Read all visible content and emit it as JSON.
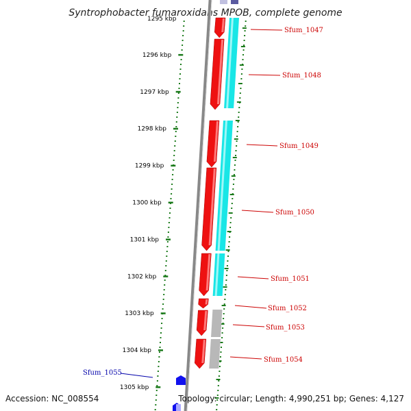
{
  "header": {
    "title": "Syntrophobacter fumaroxidans MPOB, complete genome"
  },
  "footer": {
    "accession": "Accession: NC_008554",
    "topology": "Topology: circular; Length: 4,990,251 bp; Genes: 4,127"
  },
  "scale": {
    "top_partial_label": "1295 kbp",
    "ticks": [
      {
        "kbp": 1296,
        "label": "1296 kbp"
      },
      {
        "kbp": 1297,
        "label": "1297 kbp"
      },
      {
        "kbp": 1298,
        "label": "1298 kbp"
      },
      {
        "kbp": 1299,
        "label": "1299 kbp"
      },
      {
        "kbp": 1300,
        "label": "1300 kbp"
      },
      {
        "kbp": 1301,
        "label": "1301 kbp"
      },
      {
        "kbp": 1302,
        "label": "1302 kbp"
      },
      {
        "kbp": 1303,
        "label": "1303 kbp"
      },
      {
        "kbp": 1304,
        "label": "1304 kbp"
      },
      {
        "kbp": 1305,
        "label": "1305 kbp"
      }
    ]
  },
  "genes": [
    {
      "id": "Sfum_1047",
      "strand": "forward"
    },
    {
      "id": "Sfum_1048",
      "strand": "forward"
    },
    {
      "id": "Sfum_1049",
      "strand": "forward"
    },
    {
      "id": "Sfum_1050",
      "strand": "forward"
    },
    {
      "id": "Sfum_1051",
      "strand": "forward"
    },
    {
      "id": "Sfum_1052",
      "strand": "forward"
    },
    {
      "id": "Sfum_1053",
      "strand": "forward"
    },
    {
      "id": "Sfum_1054",
      "strand": "forward"
    },
    {
      "id": "Sfum_1055",
      "strand": "reverse"
    }
  ],
  "colors": {
    "forward_cds": "#ee1111",
    "reverse_cds": "#1111ee",
    "cog_cyan": "#19e6e6",
    "cog_gray": "#b8b8b8",
    "backbone": "#888888",
    "tick_green": "#1a7a1a",
    "forward_label": "#cc0000",
    "reverse_label": "#0000aa"
  }
}
